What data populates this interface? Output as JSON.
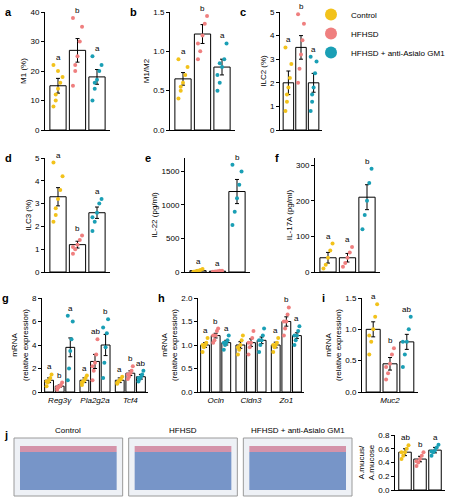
{
  "legend": "top right",
  "groups": [
    {
      "name": "Control",
      "color": "#f2c21b"
    },
    {
      "name": "HFHSD",
      "color": "#ef7f7f"
    },
    {
      "name": "HFHSD + anti-Asialo GM1",
      "color": "#1a9fb5"
    }
  ],
  "chart_data": [
    {
      "panel": "a",
      "type": "bar",
      "y_label": "M1 (%)",
      "categories": [
        null
      ],
      "tick_labels": "y",
      "ylim": [
        0,
        40
      ],
      "yticks": [
        0,
        10,
        20,
        30,
        40
      ],
      "series": [
        {
          "values": [
            15
          ],
          "errors": [
            2.5
          ],
          "letters": [
            "a"
          ],
          "points": [
            [
              8,
              12,
              14,
              16,
              18,
              22,
              10,
              20
            ]
          ]
        },
        {
          "values": [
            27
          ],
          "errors": [
            4
          ],
          "letters": [
            "b"
          ],
          "points": [
            [
              15,
              20,
              25,
              30,
              35,
              38,
              22
            ]
          ]
        },
        {
          "values": [
            18
          ],
          "errors": [
            2.5
          ],
          "letters": [
            "a"
          ],
          "points": [
            [
              10,
              14,
              17,
              20,
              22,
              25,
              16
            ]
          ]
        }
      ]
    },
    {
      "panel": "b",
      "type": "bar",
      "y_label": "M1/M2",
      "categories": [
        null
      ],
      "tick_labels": "y",
      "ylim": [
        0,
        1.5
      ],
      "yticks": [
        {
          "value": 0,
          "label": "0.0"
        },
        0.5,
        {
          "value": 1,
          "label": "1.0"
        },
        1.5
      ],
      "series": [
        {
          "values": [
            0.65
          ],
          "errors": [
            0.08
          ],
          "letters": [
            "a"
          ],
          "points": [
            [
              0.4,
              0.5,
              0.6,
              0.7,
              0.8,
              0.9,
              0.55
            ]
          ]
        },
        {
          "values": [
            1.22
          ],
          "errors": [
            0.12
          ],
          "letters": [
            "b"
          ],
          "points": [
            [
              0.9,
              1.0,
              1.2,
              1.35,
              1.45,
              1.1
            ]
          ]
        },
        {
          "values": [
            0.8
          ],
          "errors": [
            0.1
          ],
          "letters": [
            "a"
          ],
          "points": [
            [
              0.5,
              0.6,
              0.8,
              0.9,
              1.1,
              0.7,
              0.85
            ]
          ]
        }
      ]
    },
    {
      "panel": "c",
      "type": "bar",
      "y_label": "ILC2 (%)",
      "categories": [
        null
      ],
      "tick_labels": "y",
      "ylim": [
        0,
        5
      ],
      "yticks": [
        0,
        1,
        2,
        3,
        4,
        5
      ],
      "series": [
        {
          "values": [
            2.0
          ],
          "errors": [
            0.5
          ],
          "letters": [
            "a"
          ],
          "points": [
            [
              0.8,
              1.2,
              1.8,
              2.2,
              2.8,
              3.5,
              1.5
            ]
          ]
        },
        {
          "values": [
            3.5
          ],
          "errors": [
            0.5
          ],
          "letters": [
            "b"
          ],
          "points": [
            [
              2.0,
              2.6,
              3.2,
              3.8,
              4.5,
              4.9
            ]
          ]
        },
        {
          "values": [
            2.0
          ],
          "errors": [
            0.4
          ],
          "letters": [
            "a"
          ],
          "points": [
            [
              0.8,
              1.2,
              1.8,
              2.4,
              2.9,
              3.1,
              1.5
            ]
          ]
        }
      ]
    },
    {
      "panel": "d",
      "type": "bar",
      "y_label": "ILC3 (%)",
      "categories": [
        null
      ],
      "tick_labels": "y",
      "ylim": [
        0,
        5
      ],
      "yticks": [
        0,
        1,
        2,
        3,
        4,
        5
      ],
      "series": [
        {
          "values": [
            3.3
          ],
          "errors": [
            0.4
          ],
          "letters": [
            "a"
          ],
          "points": [
            [
              2.2,
              2.8,
              3.2,
              3.6,
              4.2,
              4.8,
              2.5
            ]
          ]
        },
        {
          "values": [
            1.2
          ],
          "errors": [
            0.15
          ],
          "letters": [
            "b"
          ],
          "points": [
            [
              0.8,
              1.0,
              1.2,
              1.4,
              1.6,
              1.1
            ]
          ]
        },
        {
          "values": [
            2.6
          ],
          "errors": [
            0.25
          ],
          "letters": [
            "a"
          ],
          "points": [
            [
              1.8,
              2.2,
              2.6,
              3.0,
              3.2,
              2.4
            ]
          ]
        }
      ]
    },
    {
      "panel": "e",
      "type": "bar",
      "y_label": "IL-22 (pg/ml)",
      "categories": [
        null
      ],
      "tick_labels": "y",
      "ylim": [
        0,
        1700
      ],
      "yticks": [
        0,
        500,
        1000,
        1500
      ],
      "series": [
        {
          "values": [
            20
          ],
          "errors": [
            8
          ],
          "letters": [
            "a"
          ],
          "points": [
            [
              5,
              10,
              20,
              30,
              45
            ]
          ]
        },
        {
          "values": [
            12
          ],
          "errors": [
            4
          ],
          "letters": [
            "a"
          ],
          "points": [
            [
              5,
              8,
              12,
              18,
              20
            ]
          ]
        },
        {
          "values": [
            1200
          ],
          "errors": [
            180
          ],
          "letters": [
            "b"
          ],
          "points": [
            [
              700,
              900,
              1100,
              1300,
              1500,
              1600
            ]
          ]
        }
      ]
    },
    {
      "panel": "f",
      "type": "bar",
      "y_label": "IL-17A (pg/ml)",
      "categories": [
        null
      ],
      "tick_labels": "y",
      "ylim": [
        0,
        320
      ],
      "yticks": [
        0,
        100,
        200,
        300
      ],
      "series": [
        {
          "values": [
            40
          ],
          "errors": [
            15
          ],
          "letters": [
            "a"
          ],
          "points": [
            [
              10,
              20,
              40,
              60,
              80
            ]
          ]
        },
        {
          "values": [
            40
          ],
          "errors": [
            12
          ],
          "letters": [
            "a"
          ],
          "points": [
            [
              15,
              25,
              40,
              55,
              70
            ]
          ]
        },
        {
          "values": [
            210
          ],
          "errors": [
            35
          ],
          "letters": [
            "b"
          ],
          "points": [
            [
              120,
              160,
              200,
              250,
              290
            ]
          ]
        }
      ]
    },
    {
      "panel": "g",
      "type": "bar",
      "y_label": "mRNA\n(relative expression)",
      "categories": [
        "Reg3γ",
        "Pla2g2a",
        "Tcf4"
      ],
      "ylim": [
        0,
        8
      ],
      "yticks": [
        0,
        2,
        4,
        6,
        8
      ],
      "series": [
        {
          "values": [
            1.0,
            1.0,
            1.0
          ],
          "errors": [
            0.2,
            0.2,
            0.2
          ],
          "letters": [
            "a",
            "a",
            "a"
          ],
          "points": [
            [
              0.5,
              0.8,
              1.0,
              1.2,
              1.5,
              0.9
            ],
            [
              0.6,
              0.9,
              1.0,
              1.2,
              1.4,
              0.8
            ],
            [
              0.7,
              0.9,
              1.0,
              1.1,
              1.3,
              0.8
            ]
          ]
        },
        {
          "values": [
            0.5,
            2.6,
            1.6
          ],
          "errors": [
            0.1,
            0.6,
            0.2
          ],
          "letters": [
            "b",
            "ab",
            "b"
          ],
          "points": [
            [
              0.2,
              0.4,
              0.5,
              0.6,
              0.8,
              0.4
            ],
            [
              1.0,
              1.8,
              2.5,
              3.2,
              4.5,
              2.2
            ],
            [
              1.1,
              1.3,
              1.6,
              1.8,
              2.2,
              1.5
            ]
          ]
        },
        {
          "values": [
            3.8,
            4.0,
            1.3
          ],
          "errors": [
            0.8,
            0.9,
            0.2
          ],
          "letters": [
            "a",
            "b",
            "ab"
          ],
          "points": [
            [
              1.0,
              2.0,
              3.5,
              4.5,
              6.0,
              6.5
            ],
            [
              1.2,
              2.5,
              3.8,
              5.0,
              6.2,
              5.5
            ],
            [
              0.9,
              1.1,
              1.3,
              1.5,
              1.8,
              1.2
            ]
          ]
        }
      ]
    },
    {
      "panel": "h",
      "type": "bar",
      "y_label": "mRNA\n(relative expression)",
      "categories": [
        "Ocln",
        "Cldn3",
        "Zo1"
      ],
      "ylim": [
        0,
        2
      ],
      "yticks": [
        {
          "value": 0,
          "label": "0.0"
        },
        0.5,
        {
          "value": 1,
          "label": "1.0"
        },
        1.5,
        {
          "value": 2,
          "label": "2.0"
        }
      ],
      "series": [
        {
          "values": [
            1.0,
            1.0,
            1.0
          ],
          "errors": [
            0.05,
            0.07,
            0.06
          ],
          "letters": [
            "a",
            null,
            "a"
          ],
          "points": [
            [
              0.85,
              0.95,
              1.0,
              1.05,
              1.15,
              1.0
            ],
            [
              0.8,
              0.9,
              1.0,
              1.1,
              1.2,
              0.95
            ],
            [
              0.85,
              0.95,
              1.0,
              1.05,
              1.15,
              1.0
            ]
          ]
        },
        {
          "values": [
            1.2,
            1.05,
            1.5
          ],
          "errors": [
            0.05,
            0.08,
            0.1
          ],
          "letters": [
            "b",
            null,
            "b"
          ],
          "points": [
            [
              1.05,
              1.1,
              1.2,
              1.3,
              1.35,
              1.2
            ],
            [
              0.8,
              0.95,
              1.05,
              1.15,
              1.3,
              1.05
            ],
            [
              1.2,
              1.35,
              1.5,
              1.65,
              1.8,
              1.5
            ]
          ]
        },
        {
          "values": [
            1.05,
            1.1,
            1.2
          ],
          "errors": [
            0.05,
            0.07,
            0.06
          ],
          "letters": [
            "a",
            null,
            "a"
          ],
          "points": [
            [
              0.9,
              1.0,
              1.05,
              1.1,
              1.2,
              1.05
            ],
            [
              0.85,
              1.0,
              1.1,
              1.2,
              1.35,
              1.1
            ],
            [
              1.0,
              1.1,
              1.2,
              1.3,
              1.4,
              1.2
            ]
          ]
        }
      ]
    },
    {
      "panel": "i",
      "type": "bar",
      "y_label": "mRNA\n(relative expression)",
      "categories": [
        "Muc2"
      ],
      "ylim": [
        0,
        1.5
      ],
      "yticks": [
        {
          "value": 0,
          "label": "0.0"
        },
        0.5,
        {
          "value": 1,
          "label": "1.0"
        },
        1.5
      ],
      "series": [
        {
          "values": [
            1.0
          ],
          "errors": [
            0.12
          ],
          "letters": [
            "a"
          ],
          "points": [
            [
              0.6,
              0.8,
              1.0,
              1.2,
              1.4,
              0.9
            ]
          ]
        },
        {
          "values": [
            0.45
          ],
          "errors": [
            0.1
          ],
          "letters": [
            "b"
          ],
          "points": [
            [
              0.2,
              0.3,
              0.45,
              0.6,
              0.7,
              0.4
            ]
          ]
        },
        {
          "values": [
            0.8
          ],
          "errors": [
            0.12
          ],
          "letters": [
            "ab"
          ],
          "points": [
            [
              0.4,
              0.6,
              0.8,
              1.0,
              1.2,
              0.8
            ]
          ]
        }
      ]
    },
    {
      "panel": "j",
      "type": "bar",
      "y_label": "A.mucus/\nA.mucose",
      "categories": [
        null
      ],
      "tick_labels": "y",
      "image_labels": [
        "Control",
        "HFHSD",
        "HFHSD + anti-Asialo GM1"
      ],
      "ylim": [
        0,
        0.8
      ],
      "yticks": [
        {
          "value": 0,
          "label": "0.0"
        },
        0.2,
        0.4,
        0.6,
        0.8
      ],
      "series": [
        {
          "values": [
            0.55
          ],
          "errors": [
            0.05
          ],
          "letters": [
            "ab"
          ],
          "points": [
            [
              0.45,
              0.5,
              0.55,
              0.6,
              0.65,
              0.55
            ]
          ]
        },
        {
          "values": [
            0.45
          ],
          "errors": [
            0.04
          ],
          "letters": [
            "b"
          ],
          "points": [
            [
              0.35,
              0.4,
              0.45,
              0.5,
              0.55,
              0.42
            ]
          ]
        },
        {
          "values": [
            0.58
          ],
          "errors": [
            0.04
          ],
          "letters": [
            "a"
          ],
          "points": [
            [
              0.5,
              0.55,
              0.58,
              0.62,
              0.66,
              0.56
            ]
          ]
        }
      ]
    }
  ]
}
